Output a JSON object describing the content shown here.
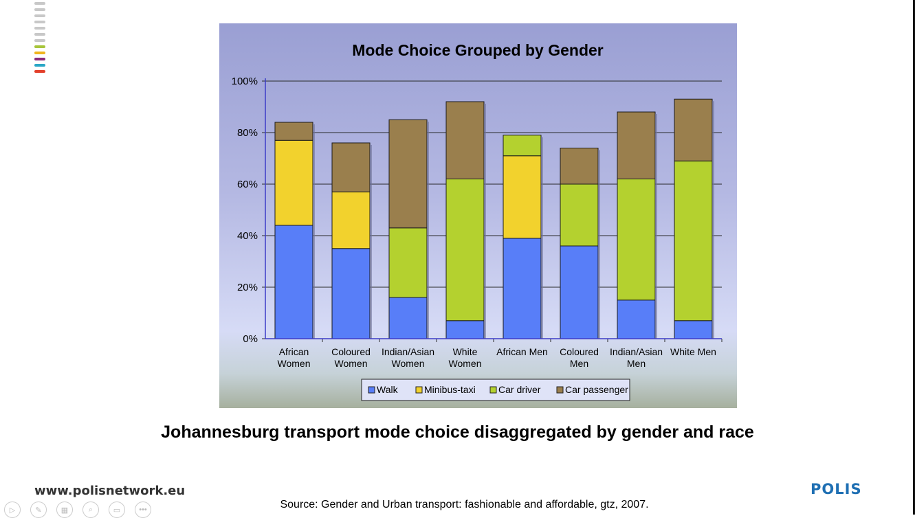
{
  "footer": {
    "caption": "Johannesburg transport mode choice disaggregated by gender and race",
    "website": "www.polisnetwork.eu",
    "source": "Source: Gender and Urban transport: fashionable and affordable, gtz, 2007.",
    "logo": "POLIS"
  },
  "brand_colors": [
    "#c8c8c8",
    "#c8c8c8",
    "#c8c8c8",
    "#c8c8c8",
    "#c8c8c8",
    "#c8c8c8",
    "#c8c8c8",
    "#a7c53b",
    "#f0b51e",
    "#8a2a7c",
    "#2aa7c6",
    "#e3402b"
  ],
  "controls": [
    {
      "icon": "play-icon",
      "glyph": "▷"
    },
    {
      "icon": "pen-icon",
      "glyph": "✎"
    },
    {
      "icon": "slides-icon",
      "glyph": "▦"
    },
    {
      "icon": "zoom-icon",
      "glyph": "⌕"
    },
    {
      "icon": "subtitles-icon",
      "glyph": "▭"
    },
    {
      "icon": "more-icon",
      "glyph": "•••"
    }
  ],
  "chart_data": {
    "type": "bar",
    "stacked": true,
    "title": "Mode Choice Grouped by Gender",
    "xlabel": "",
    "ylabel": "",
    "ylim": [
      0,
      100
    ],
    "yticks": [
      0,
      20,
      40,
      60,
      80,
      100
    ],
    "ytick_labels": [
      "0%",
      "20%",
      "40%",
      "60%",
      "80%",
      "100%"
    ],
    "grid": true,
    "legend_position": "bottom",
    "categories": [
      [
        "African",
        "Women"
      ],
      [
        "Coloured",
        "Women"
      ],
      [
        "Indian/Asian",
        "Women"
      ],
      [
        "White",
        "Women"
      ],
      [
        "African Men"
      ],
      [
        "Coloured",
        "Men"
      ],
      [
        "Indian/Asian",
        "Men"
      ],
      [
        "White Men"
      ]
    ],
    "series": [
      {
        "name": "Walk",
        "color": "#587ef8",
        "values": [
          44,
          35,
          16,
          7,
          39,
          36,
          15,
          7
        ]
      },
      {
        "name": "Minibus-taxi",
        "color": "#f2d22d",
        "values": [
          33,
          22,
          0,
          0,
          32,
          0,
          0,
          0
        ]
      },
      {
        "name": "Car driver",
        "color": "#b4d12f",
        "values": [
          0,
          0,
          27,
          55,
          8,
          24,
          47,
          62
        ]
      },
      {
        "name": "Car passenger",
        "color": "#9a7f4d",
        "values": [
          7,
          19,
          42,
          30,
          0,
          14,
          26,
          24
        ]
      }
    ]
  }
}
